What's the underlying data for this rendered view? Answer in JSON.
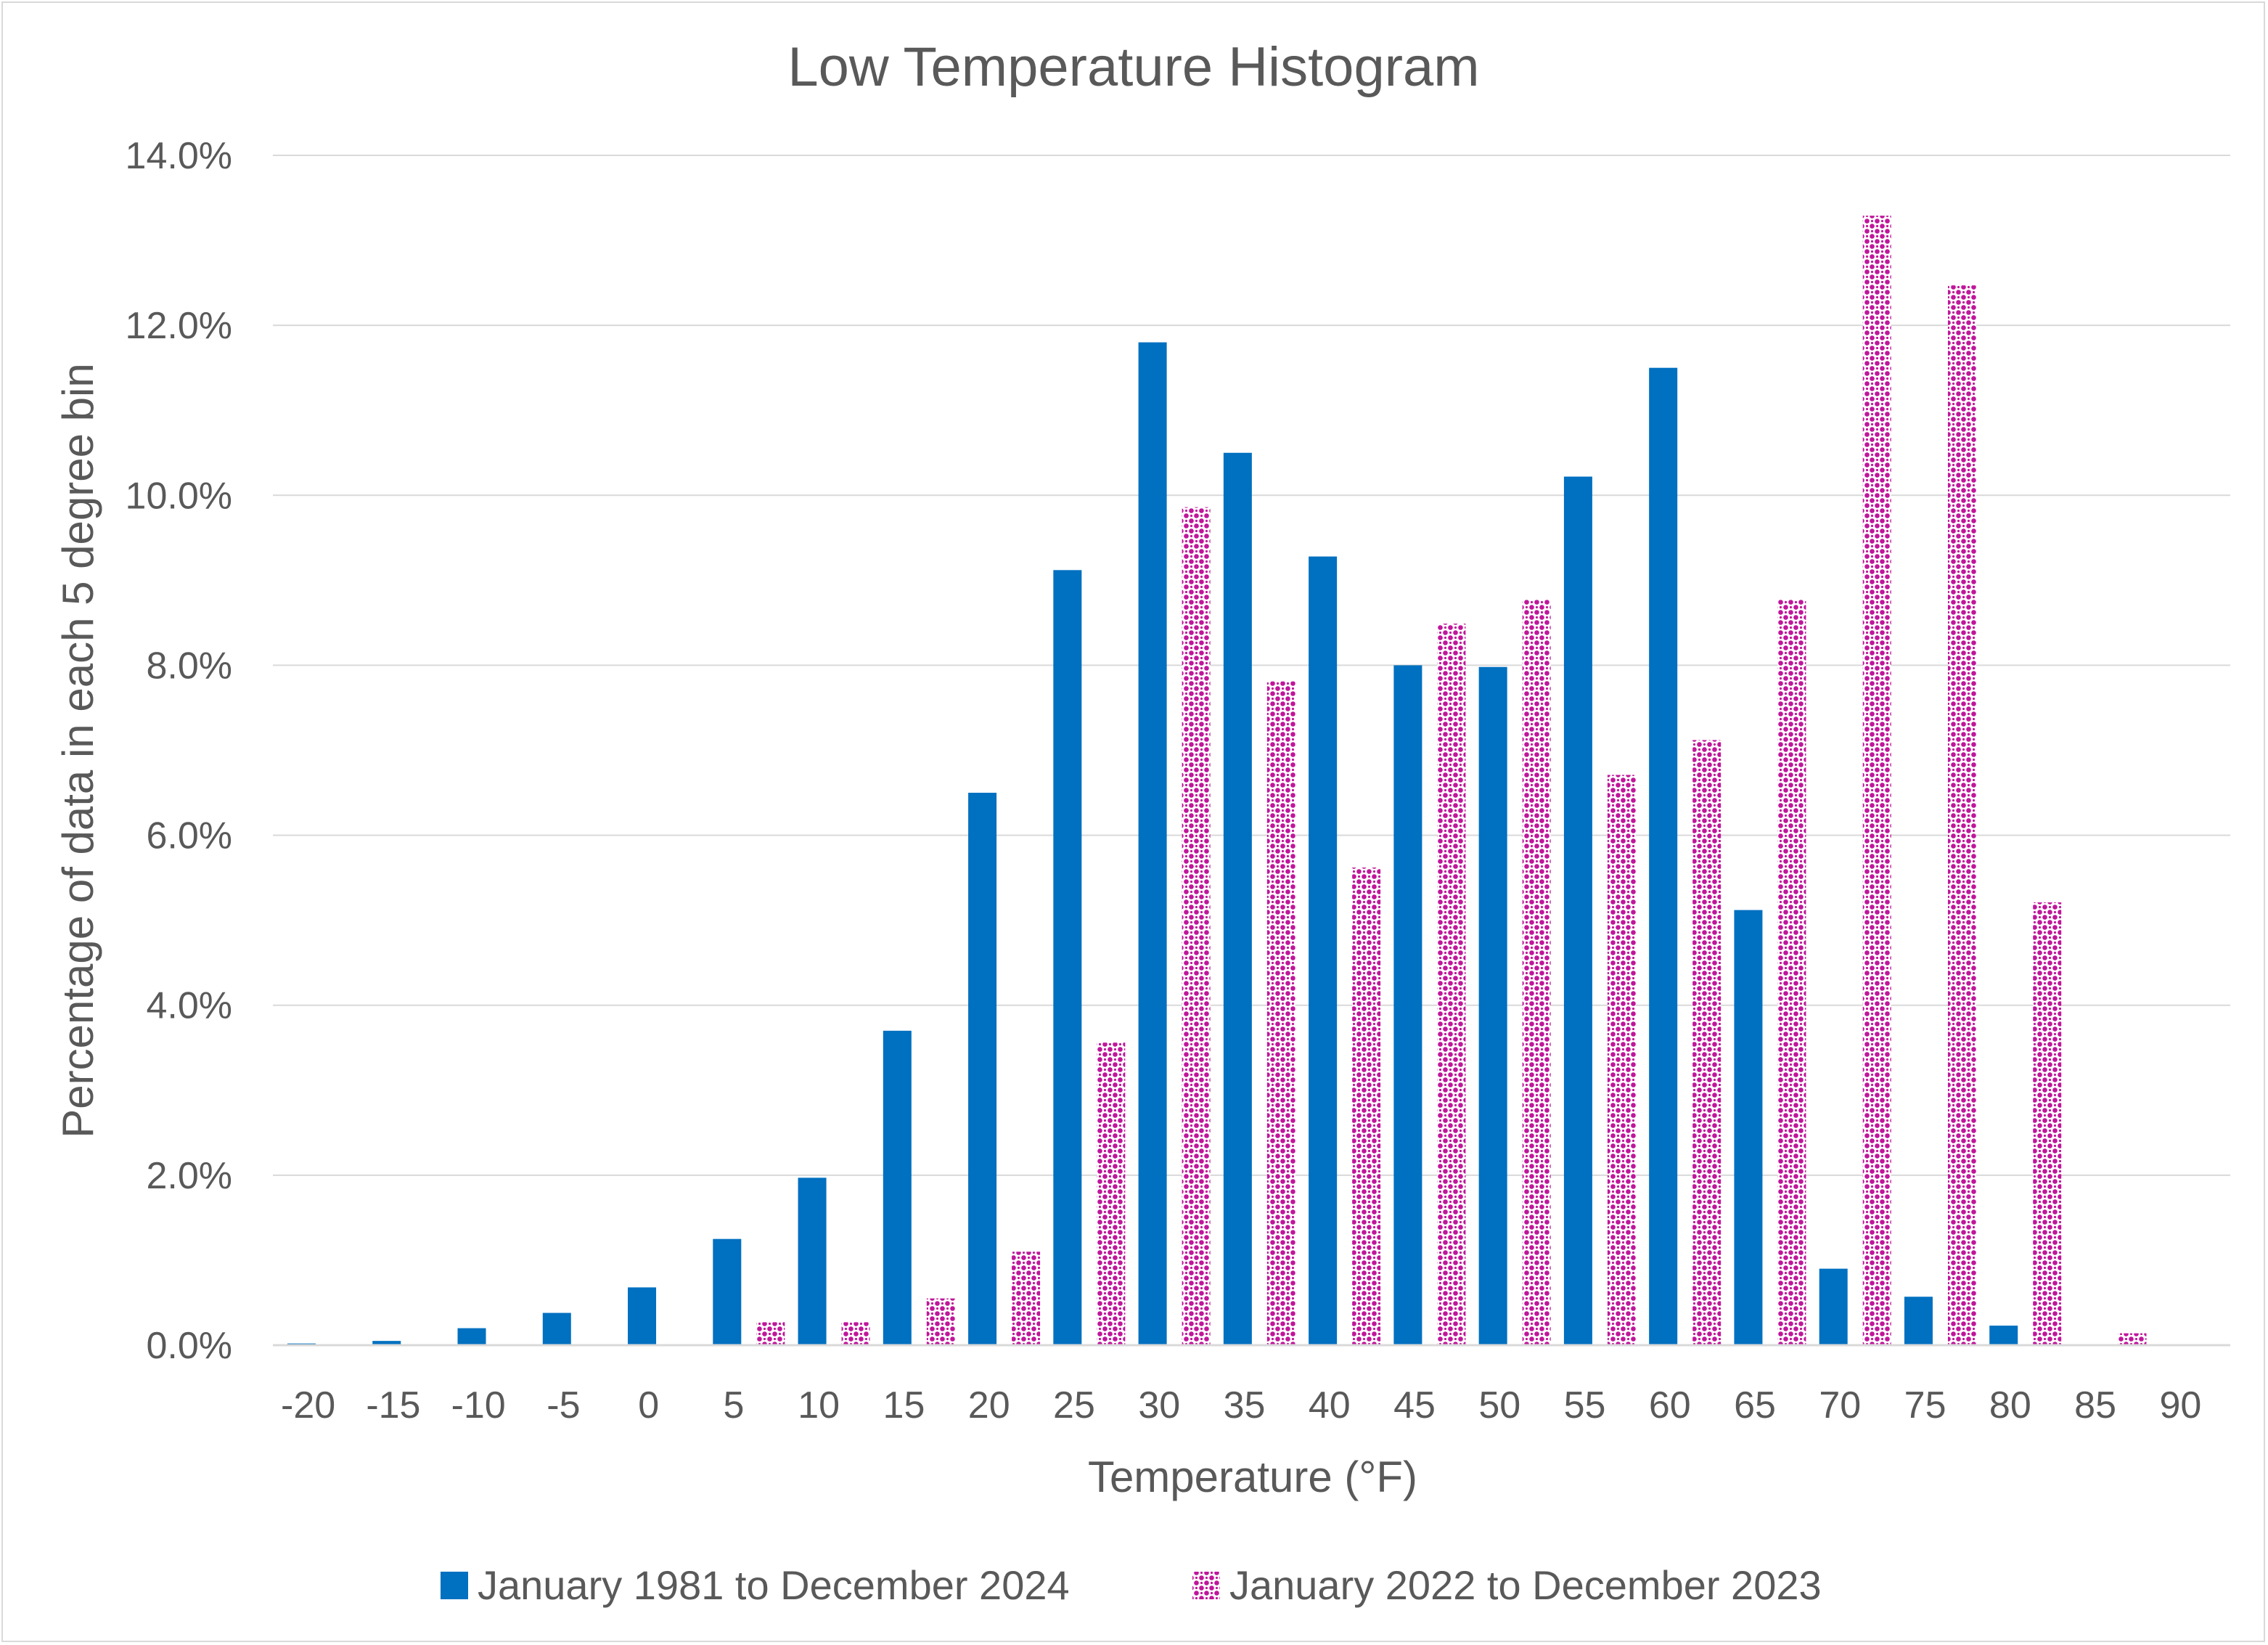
{
  "chart_data": {
    "type": "bar",
    "title": "Low Temperature Histogram",
    "xlabel": "Temperature (°F)",
    "ylabel": "Percentage of data in each 5 degree bin",
    "ylim": [
      0,
      14
    ],
    "yticks": [
      "0.0%",
      "2.0%",
      "4.0%",
      "6.0%",
      "8.0%",
      "10.0%",
      "12.0%",
      "14.0%"
    ],
    "categories": [
      "-20",
      "-15",
      "-10",
      "-5",
      "0",
      "5",
      "10",
      "15",
      "20",
      "25",
      "30",
      "35",
      "40",
      "45",
      "50",
      "55",
      "60",
      "65",
      "70",
      "75",
      "80",
      "85",
      "90"
    ],
    "grid": true,
    "legend_position": "bottom",
    "series": [
      {
        "name": "January 1981 to December 2024",
        "color": "#0070c0",
        "pattern": "solid",
        "values": [
          0.02,
          0.05,
          0.2,
          0.38,
          0.68,
          1.25,
          1.97,
          3.7,
          6.5,
          9.12,
          11.8,
          10.5,
          9.28,
          8.0,
          7.98,
          10.22,
          11.5,
          5.12,
          0.9,
          0.57,
          0.23,
          0.0,
          0.0
        ]
      },
      {
        "name": "January 2022 to December 2023",
        "color": "#c0169b",
        "pattern": "dots",
        "values": [
          0.0,
          0.0,
          0.0,
          0.0,
          0.0,
          0.27,
          0.27,
          0.55,
          1.1,
          3.56,
          9.86,
          7.81,
          5.62,
          8.49,
          8.77,
          6.71,
          7.12,
          8.77,
          13.29,
          12.47,
          5.21,
          0.14,
          0.0
        ]
      }
    ]
  }
}
